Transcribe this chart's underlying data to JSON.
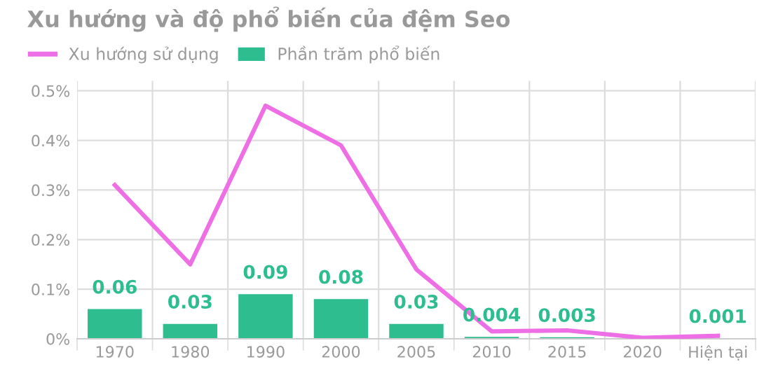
{
  "chart_data": {
    "type": "bar",
    "title": "Xu hướng và độ phổ biến của đệm Seo",
    "categories": [
      "1970",
      "1980",
      "1990",
      "2000",
      "2005",
      "2010",
      "2015",
      "2020",
      "Hiện tại"
    ],
    "series": [
      {
        "name": "Xu hướng sử dụng",
        "type": "line",
        "color": "#ee6ee6",
        "values": [
          0.31,
          0.15,
          0.47,
          0.39,
          0.14,
          0.015,
          0.017,
          0.002,
          0.006
        ]
      },
      {
        "name": "Phần trăm phổ biến",
        "color": "#2dbd8f",
        "values": [
          0.06,
          0.03,
          0.09,
          0.08,
          0.03,
          0.004,
          0.003,
          null,
          0.001
        ],
        "value_labels": [
          "0.06",
          "0.03",
          "0.09",
          "0.08",
          "0.03",
          "0.004",
          "0.003",
          null,
          "0.001"
        ]
      }
    ],
    "ylim": [
      0,
      0.52
    ],
    "yticks": [
      {
        "value": 0,
        "label": "0%"
      },
      {
        "value": 0.1,
        "label": "0.1%"
      },
      {
        "value": 0.2,
        "label": "0.2%"
      },
      {
        "value": 0.3,
        "label": "0.3%"
      },
      {
        "value": 0.4,
        "label": "0.4%"
      },
      {
        "value": 0.5,
        "label": "0.5%"
      }
    ],
    "grid": true,
    "legend": "top left"
  }
}
